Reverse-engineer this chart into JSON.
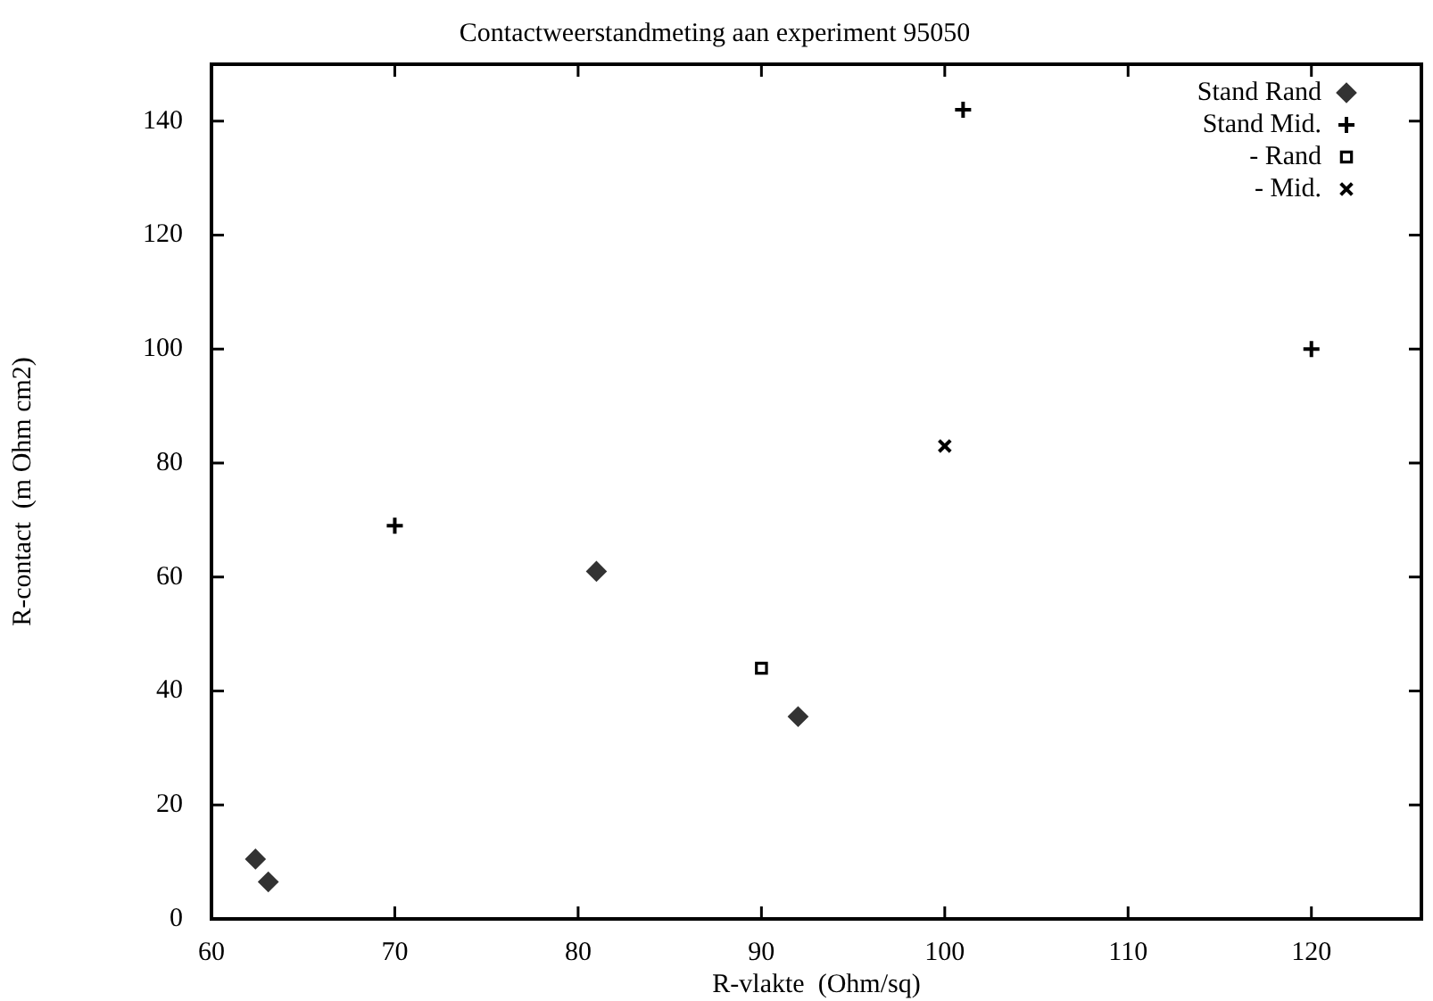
{
  "chart_data": {
    "type": "scatter",
    "title": "Contactweerstandmeting aan experiment 95050",
    "xlabel": "R-vlakte  (Ohm/sq)",
    "ylabel": "R-contact  (m Ohm cm2)",
    "xlim": [
      60,
      126
    ],
    "xticks": [
      60,
      70,
      80,
      90,
      100,
      110,
      120
    ],
    "ylim": [
      0,
      150
    ],
    "yticks": [
      0,
      20,
      40,
      60,
      80,
      100,
      120,
      140
    ],
    "grid": false,
    "legend": "top right",
    "series": [
      {
        "name": "Stand Rand",
        "color": "#333333",
        "marker": "diamond",
        "x": [
          62.4,
          63.1,
          81,
          92
        ],
        "values": [
          10.5,
          6.5,
          61,
          35.5
        ]
      },
      {
        "name": "Stand Mid.",
        "color": "#000000",
        "marker": "cross",
        "x": [
          70,
          101,
          120
        ],
        "values": [
          69,
          142,
          100
        ]
      },
      {
        "name": "- Rand",
        "color": "#000000",
        "marker": "square",
        "x": [
          90
        ],
        "values": [
          44
        ]
      },
      {
        "name": "- Mid.",
        "color": "#000000",
        "marker": "x",
        "x": [
          100
        ],
        "values": [
          83
        ]
      }
    ]
  }
}
